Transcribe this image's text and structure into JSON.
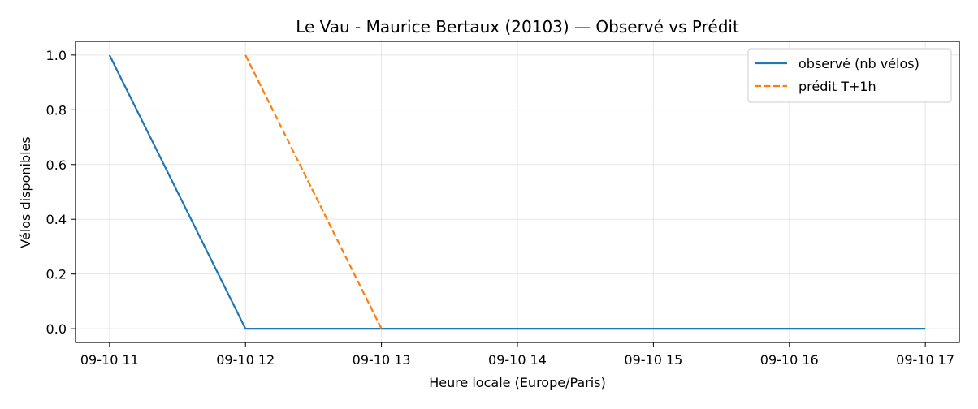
{
  "chart_data": {
    "type": "line",
    "title": "Le Vau - Maurice Bertaux (20103) — Observé vs Prédit",
    "xlabel": "Heure locale (Europe/Paris)",
    "ylabel": "Vélos disponibles",
    "x_ticks": [
      "09-10 11",
      "09-10 12",
      "09-10 13",
      "09-10 14",
      "09-10 15",
      "09-10 16",
      "09-10 17"
    ],
    "y_ticks": [
      "0.0",
      "0.2",
      "0.4",
      "0.6",
      "0.8",
      "1.0"
    ],
    "xlim": [
      "09-10 10:45",
      "09-10 17:15"
    ],
    "ylim": [
      -0.05,
      1.05
    ],
    "grid": true,
    "legend_position": "top-right",
    "series": [
      {
        "name": "observé (nb vélos)",
        "color": "#1f77b4",
        "style": "solid",
        "points": [
          {
            "x": "09-10 11",
            "y": 1.0
          },
          {
            "x": "09-10 12",
            "y": 0.0
          },
          {
            "x": "09-10 13",
            "y": 0.0
          },
          {
            "x": "09-10 14",
            "y": 0.0
          },
          {
            "x": "09-10 15",
            "y": 0.0
          },
          {
            "x": "09-10 16",
            "y": 0.0
          },
          {
            "x": "09-10 17",
            "y": 0.0
          }
        ]
      },
      {
        "name": "prédit T+1h",
        "color": "#ff7f0e",
        "style": "dashed",
        "points": [
          {
            "x": "09-10 12",
            "y": 1.0
          },
          {
            "x": "09-10 13",
            "y": 0.0
          }
        ]
      }
    ]
  }
}
